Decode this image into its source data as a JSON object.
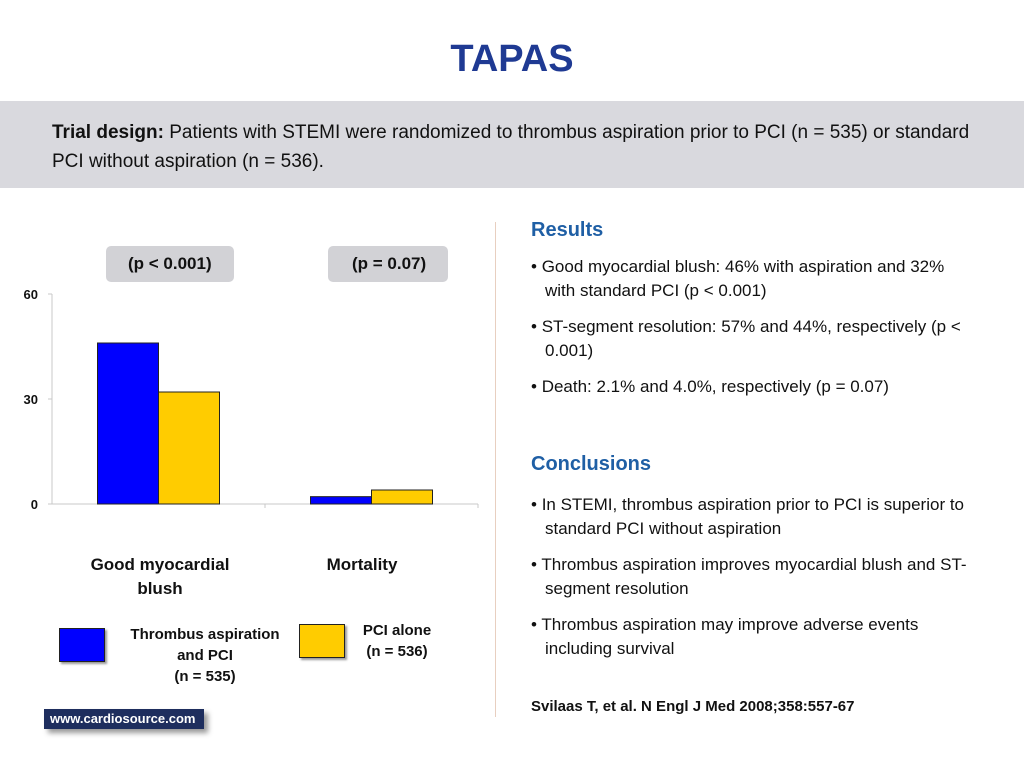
{
  "slide": {
    "title": "TAPAS",
    "design_label": "Trial design:",
    "design_text": " Patients with STEMI were randomized to thrombus aspiration prior to PCI (n = 535) or standard PCI without aspiration (n = 536)."
  },
  "chart_data": {
    "type": "bar",
    "categories": [
      "Good myocardial blush",
      "Mortality"
    ],
    "series": [
      {
        "name": "Thrombus aspiration and PCI (n = 535)",
        "values": [
          46,
          2.1
        ],
        "color": "#0000ff"
      },
      {
        "name": "PCI alone (n = 536)",
        "values": [
          32,
          4.0
        ],
        "color": "#ffcc00"
      }
    ],
    "ylim": [
      0,
      60
    ],
    "yticks": [
      "0",
      "30",
      "60"
    ],
    "p_values": [
      "(p < 0.001)",
      "(p = 0.07)"
    ],
    "legend": [
      {
        "lines": [
          "Thrombus aspiration",
          "and PCI",
          "(n = 535)"
        ],
        "color": "#0000ff"
      },
      {
        "lines": [
          "PCI alone",
          "(n = 536)"
        ],
        "color": "#ffcc00"
      }
    ]
  },
  "results": {
    "heading": "Results",
    "items": [
      "Good myocardial blush: 46% with aspiration and 32% with standard PCI (p < 0.001)",
      "ST-segment resolution: 57% and 44%, respectively (p < 0.001)",
      "Death: 2.1% and 4.0%, respectively (p = 0.07)"
    ]
  },
  "conclusions": {
    "heading": "Conclusions",
    "items": [
      "In STEMI, thrombus aspiration prior to PCI is superior to standard PCI without aspiration",
      "Thrombus aspiration improves myocardial blush and ST-segment resolution",
      "Thrombus aspiration may improve adverse events including survival"
    ]
  },
  "reference": "Svilaas T, et al. N Engl J Med 2008;358:557-67",
  "logo": "www.cardiosource.com"
}
